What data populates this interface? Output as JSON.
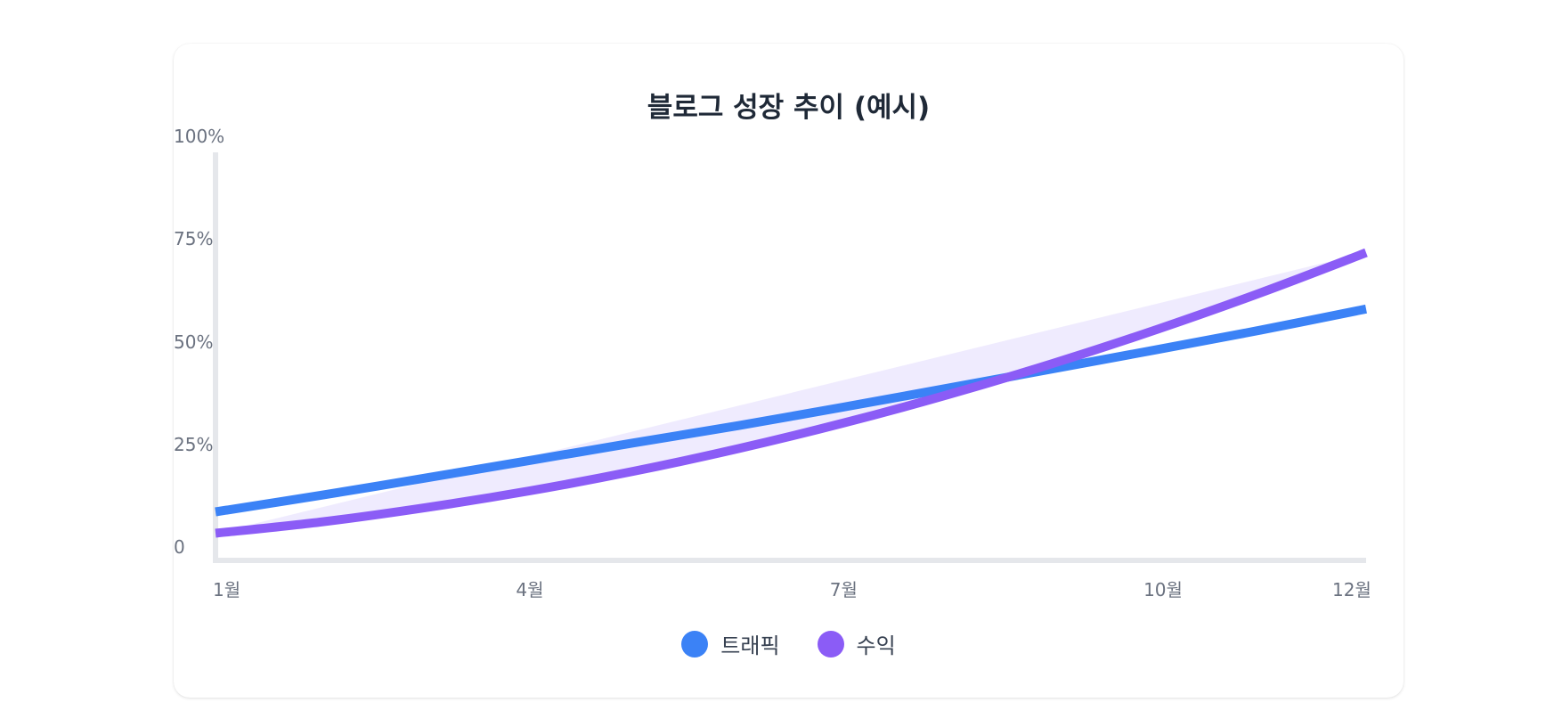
{
  "chart_data": {
    "type": "line",
    "title": "블로그 성장 추이 (예시)",
    "xlabel": "",
    "ylabel": "",
    "x_ticks": [
      "1월",
      "4월",
      "7월",
      "10월",
      "12월"
    ],
    "x_tick_months": [
      1,
      4,
      7,
      10,
      12
    ],
    "y_ticks": [
      "0",
      "25%",
      "50%",
      "75%",
      "100%"
    ],
    "y_tick_values": [
      0,
      25,
      50,
      75,
      100
    ],
    "ylim": [
      0,
      100
    ],
    "xlim": [
      1,
      12
    ],
    "grid": false,
    "legend_position": "bottom-center",
    "series": [
      {
        "name": "트래픽",
        "color": "#3b82f6",
        "x": [
          1,
          2,
          3,
          4,
          5,
          6,
          7,
          8,
          9,
          10,
          11,
          12
        ],
        "values": [
          9,
          13,
          17.2,
          21.5,
          25.8,
          30,
          34.5,
          39.1,
          43.8,
          48.5,
          53.3,
          58.4
        ]
      },
      {
        "name": "수익",
        "color": "#8b5cf6",
        "x": [
          1,
          2,
          3,
          4,
          5,
          6,
          7,
          8,
          9,
          10,
          11,
          12
        ],
        "values": [
          3.8,
          6.5,
          10,
          14.1,
          18.9,
          24.4,
          30.6,
          37.5,
          45.1,
          53.4,
          62.4,
          72.1
        ]
      }
    ],
    "area_fill_color": "#ede9fe"
  }
}
